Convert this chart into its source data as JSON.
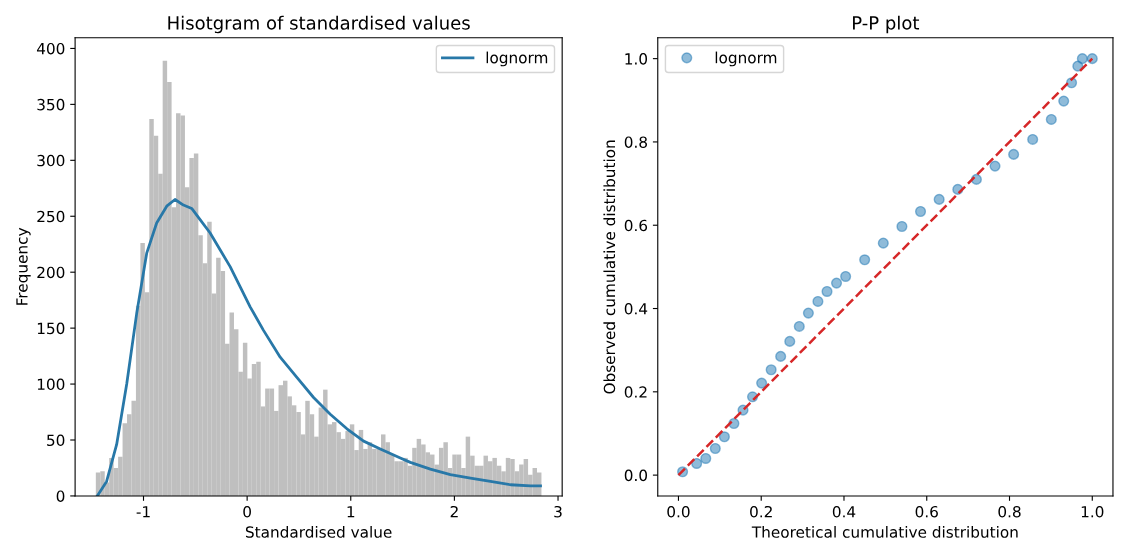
{
  "chart_data": [
    {
      "type": "histogram",
      "title": "Hisotgram of standardised values",
      "xlabel": "Standardised value",
      "ylabel": "Frequency",
      "xlim": [
        -1.66,
        3.04
      ],
      "ylim": [
        0,
        409.5
      ],
      "xticks": [
        -1,
        0,
        1,
        2,
        3
      ],
      "yticks": [
        0,
        50,
        100,
        150,
        200,
        250,
        300,
        350,
        400
      ],
      "legend": "top right",
      "series": [
        {
          "color": "#bfbfbf",
          "bins": [
            -1.46,
            -1.417,
            -1.374,
            -1.331,
            -1.288,
            -1.245,
            -1.202,
            -1.159,
            -1.116,
            -1.073,
            -1.03,
            -0.987,
            -0.944,
            -0.901,
            -0.858,
            -0.815,
            -0.772,
            -0.729,
            -0.686,
            -0.643,
            -0.6,
            -0.557,
            -0.514,
            -0.471,
            -0.428,
            -0.385,
            -0.342,
            -0.299,
            -0.256,
            -0.213,
            -0.17,
            -0.127,
            -0.084,
            -0.041,
            0.002,
            0.045,
            0.088,
            0.131,
            0.174,
            0.217,
            0.26,
            0.303,
            0.346,
            0.389,
            0.432,
            0.475,
            0.518,
            0.561,
            0.604,
            0.647,
            0.69,
            0.733,
            0.776,
            0.819,
            0.862,
            0.905,
            0.948,
            0.991,
            1.034,
            1.077,
            1.12,
            1.163,
            1.206,
            1.249,
            1.292,
            1.335,
            1.378,
            1.421,
            1.464,
            1.507,
            1.55,
            1.593,
            1.636,
            1.679,
            1.722,
            1.765,
            1.808,
            1.851,
            1.894,
            1.937,
            1.98,
            2.023,
            2.066,
            2.109,
            2.152,
            2.195,
            2.238,
            2.281,
            2.324,
            2.367,
            2.41,
            2.453,
            2.496,
            2.539,
            2.582,
            2.625,
            2.668,
            2.711,
            2.754,
            2.797,
            2.84
          ],
          "values": [
            21,
            22,
            12,
            34,
            25,
            35,
            65,
            73,
            85,
            170,
            226,
            182,
            337,
            322,
            288,
            389,
            370,
            258,
            342,
            340,
            276,
            302,
            306,
            233,
            208,
            245,
            181,
            213,
            201,
            136,
            164,
            149,
            111,
            137,
            105,
            118,
            120,
            80,
            96,
            96,
            76,
            99,
            103,
            89,
            81,
            75,
            55,
            85,
            73,
            53,
            79,
            95,
            64,
            66,
            57,
            51,
            58,
            64,
            41,
            59,
            42,
            48,
            42,
            42,
            55,
            48,
            37,
            31,
            31,
            34,
            27,
            43,
            51,
            46,
            39,
            37,
            28,
            43,
            48,
            25,
            37,
            37,
            25,
            53,
            36,
            27,
            27,
            36,
            31,
            34,
            27,
            22,
            34,
            33,
            22,
            28,
            33,
            19,
            25,
            21
          ]
        },
        {
          "type": "line",
          "name": "lognorm",
          "color": "#2878a8",
          "x": [
            -1.446,
            -1.356,
            -1.259,
            -1.162,
            -1.066,
            -0.969,
            -0.873,
            -0.776,
            -0.696,
            -0.615,
            -0.535,
            -0.454,
            -0.357,
            -0.261,
            -0.164,
            -0.068,
            0.029,
            0.158,
            0.319,
            0.48,
            0.641,
            0.802,
            0.963,
            1.124,
            1.285,
            1.478,
            1.575,
            1.768,
            1.961,
            2.155,
            2.348,
            2.541,
            2.734,
            2.831
          ],
          "values": [
            0,
            13,
            46,
            100,
            163,
            217,
            244,
            259,
            265,
            260,
            257,
            247,
            235,
            220,
            205,
            187,
            169,
            148,
            124,
            106,
            88,
            73,
            60,
            49,
            42,
            34,
            30,
            24,
            19,
            16,
            13,
            10,
            9,
            9
          ]
        }
      ]
    },
    {
      "type": "scatter",
      "title": "P-P plot",
      "xlabel": "Theoretical cumulative distribution",
      "ylabel": "Observed cumulative distribution",
      "xlim": [
        -0.05,
        1.05
      ],
      "ylim": [
        -0.05,
        1.05
      ],
      "xticks": [
        {
          "value": 0,
          "label": "0.0"
        },
        0.2,
        0.4,
        0.6,
        0.8,
        {
          "value": 1,
          "label": "1.0"
        }
      ],
      "yticks": [
        {
          "value": 0,
          "label": "0.0"
        },
        0.2,
        0.4,
        0.6,
        0.8,
        {
          "value": 1,
          "label": "1.0"
        }
      ],
      "legend": "top left",
      "series": [
        {
          "marker": "circle",
          "name": "lognorm",
          "color": "#1f77b4",
          "x": [
            0.01,
            0.044,
            0.066,
            0.089,
            0.111,
            0.134,
            0.156,
            0.179,
            0.201,
            0.224,
            0.247,
            0.269,
            0.292,
            0.314,
            0.337,
            0.359,
            0.382,
            0.404,
            0.45,
            0.495,
            0.54,
            0.585,
            0.63,
            0.675,
            0.72,
            0.765,
            0.81,
            0.856,
            0.901,
            0.931,
            0.95,
            0.965,
            0.976,
            1.0
          ],
          "values": [
            0.008,
            0.028,
            0.04,
            0.064,
            0.092,
            0.124,
            0.156,
            0.188,
            0.221,
            0.253,
            0.285,
            0.321,
            0.357,
            0.389,
            0.417,
            0.441,
            0.461,
            0.477,
            0.517,
            0.557,
            0.597,
            0.633,
            0.662,
            0.686,
            0.71,
            0.742,
            0.77,
            0.806,
            0.854,
            0.898,
            0.942,
            0.982,
            1.0,
            1.0
          ]
        },
        {
          "type": "line",
          "color": "#d62728",
          "line_style": "dashed",
          "x": [
            0,
            1
          ],
          "values": [
            0,
            1
          ]
        }
      ]
    }
  ]
}
